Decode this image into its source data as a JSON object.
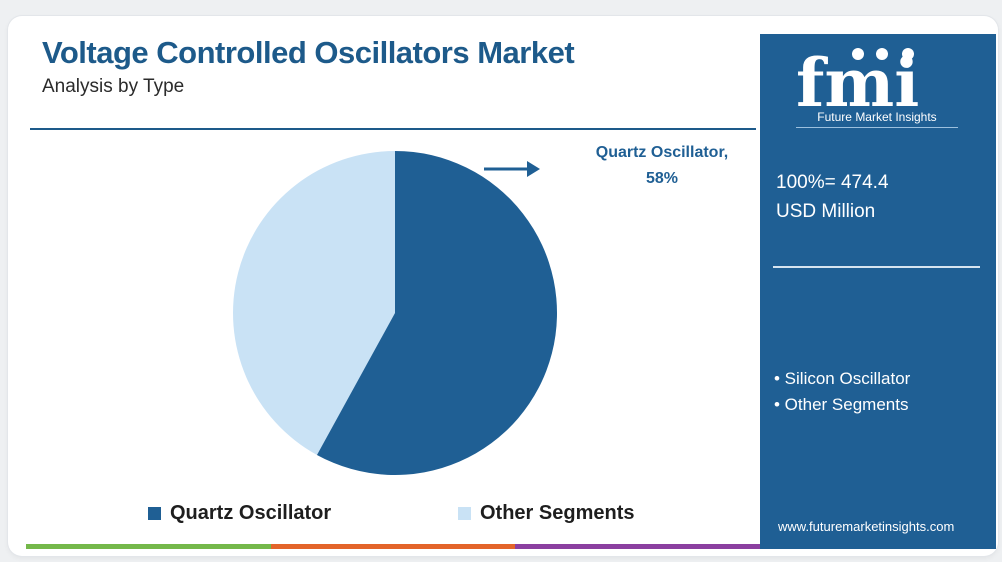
{
  "chart_data": {
    "type": "pie",
    "title": "Voltage Controlled Oscillators Market",
    "subtitle": "Analysis by Type",
    "slices": [
      {
        "label": "Quartz Oscillator",
        "value": 58,
        "color": "#1f5f94"
      },
      {
        "label": "Other Segments",
        "value": 42,
        "color": "#c9e2f5"
      }
    ],
    "annotation": {
      "line1": "Quartz Oscillator,",
      "line2": "58%"
    },
    "legend": [
      "Quartz Oscillator",
      "Other Segments"
    ],
    "legend_placement": "bottom"
  },
  "panel": {
    "logo_text": "fmi",
    "logo_tagline": "Future Market Insights",
    "total_line1": "100%= 474.4",
    "total_line2": "USD Million",
    "bullets": [
      "• Silicon Oscillator",
      "• Other Segments"
    ],
    "website": "www.futuremarketinsights.com",
    "background_color": "#1f5f94"
  },
  "bottom_bar_colors": [
    "#74b84a",
    "#e3642a",
    "#8b3fa0"
  ]
}
